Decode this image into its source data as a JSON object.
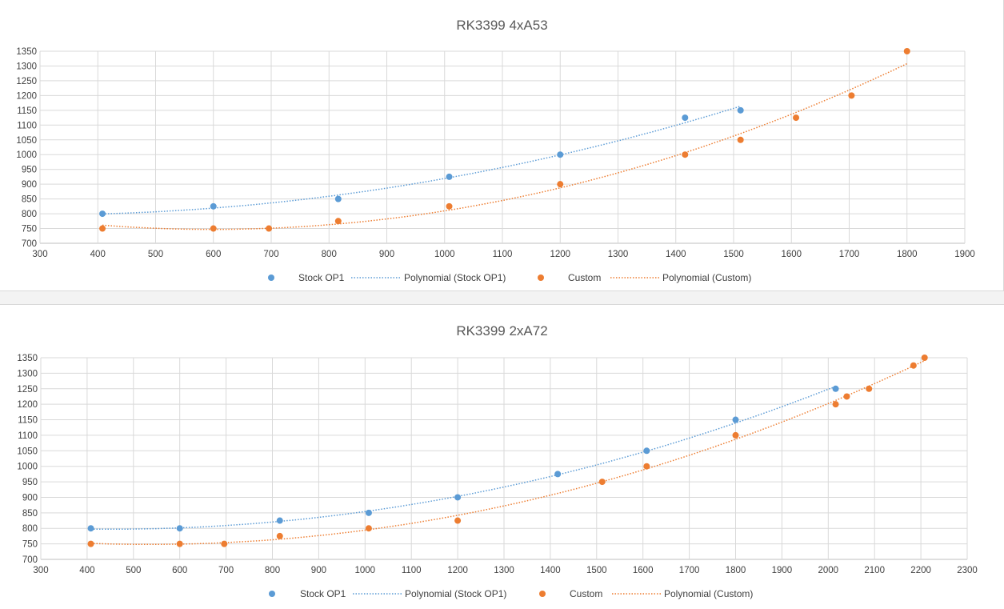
{
  "colors": {
    "stock": "#5b9bd5",
    "custom": "#ed7d31",
    "grid": "#d9d9d9",
    "axis": "#bfbfbf"
  },
  "legend_labels": [
    "Stock OP1",
    "Polynomial (Stock OP1)",
    "Custom",
    "Polynomial (Custom)"
  ],
  "chart_data": [
    {
      "type": "scatter",
      "title": "RK3399 4xA53",
      "xlabel": "",
      "ylabel": "",
      "xlim": [
        300,
        1900
      ],
      "ylim": [
        700,
        1350
      ],
      "xstep": 100,
      "ystep": 50,
      "grid": true,
      "legend": "bottom",
      "series": [
        {
          "name": "Stock OP1",
          "trendline": "Polynomial (Stock OP1)",
          "x": [
            408,
            600,
            816,
            1008,
            1200,
            1416,
            1512
          ],
          "y": [
            800,
            825,
            850,
            925,
            1000,
            1125,
            1150
          ]
        },
        {
          "name": "Custom",
          "trendline": "Polynomial (Custom)",
          "x": [
            408,
            600,
            696,
            816,
            1008,
            1200,
            1416,
            1512,
            1608,
            1704,
            1800
          ],
          "y": [
            750,
            750,
            750,
            775,
            825,
            900,
            1000,
            1050,
            1125,
            1200,
            1350
          ]
        }
      ]
    },
    {
      "type": "scatter",
      "title": "RK3399 2xA72",
      "xlabel": "",
      "ylabel": "",
      "xlim": [
        300,
        2300
      ],
      "ylim": [
        700,
        1350
      ],
      "xstep": 100,
      "ystep": 50,
      "grid": true,
      "legend": "bottom",
      "series": [
        {
          "name": "Stock OP1",
          "trendline": "Polynomial (Stock OP1)",
          "x": [
            408,
            600,
            816,
            1008,
            1200,
            1416,
            1608,
            1800,
            2016
          ],
          "y": [
            800,
            800,
            825,
            850,
            900,
            975,
            1050,
            1150,
            1250
          ]
        },
        {
          "name": "Custom",
          "trendline": "Polynomial (Custom)",
          "x": [
            408,
            600,
            696,
            816,
            1008,
            1200,
            1512,
            1608,
            1800,
            2016,
            2040,
            2088,
            2184,
            2208
          ],
          "y": [
            750,
            750,
            750,
            775,
            800,
            825,
            950,
            1000,
            1100,
            1200,
            1225,
            1250,
            1325,
            1350
          ]
        }
      ]
    }
  ]
}
